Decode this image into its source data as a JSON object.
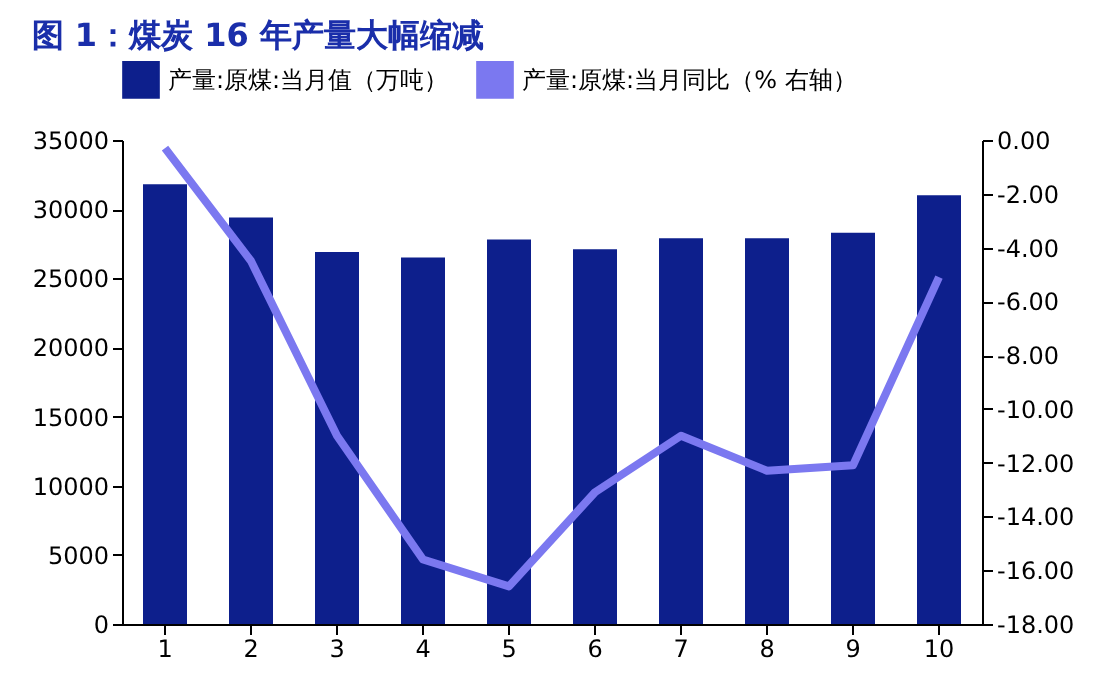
{
  "chart_data": {
    "type": "bar",
    "title": "图 1：煤炭 16 年产量大幅缩减",
    "categories": [
      "1",
      "2",
      "3",
      "4",
      "5",
      "6",
      "7",
      "8",
      "9",
      "10"
    ],
    "series": [
      {
        "name": "产量:原煤:当月值（万吨）",
        "color": "#0d1f8c",
        "values": [
          31800,
          29400,
          26900,
          26500,
          27800,
          27100,
          27900,
          27900,
          28300,
          31000
        ]
      },
      {
        "name": "产量:原煤:当月同比（% 右轴）",
        "type": "line",
        "axis": "y2",
        "color": "#7b78f0",
        "values": [
          -0.3,
          -4.5,
          -11.0,
          -15.6,
          -16.6,
          -13.1,
          -11.0,
          -12.3,
          -12.1,
          -5.1
        ]
      }
    ],
    "ylim": [
      0,
      35000
    ],
    "yticks": [
      0,
      5000,
      10000,
      15000,
      20000,
      25000,
      30000,
      35000
    ],
    "y2lim": [
      -18,
      0
    ],
    "y2ticks": [
      {
        "value": -18,
        "label": "-18.00"
      },
      {
        "value": -16,
        "label": "-16.00"
      },
      {
        "value": -14,
        "label": "-14.00"
      },
      {
        "value": -12,
        "label": "-12.00"
      },
      {
        "value": -10,
        "label": "-10.00"
      },
      {
        "value": -8,
        "label": "-8.00"
      },
      {
        "value": -6,
        "label": "-6.00"
      },
      {
        "value": -4,
        "label": "-4.00"
      },
      {
        "value": -2,
        "label": "-2.00"
      },
      {
        "value": 0,
        "label": "0.00"
      }
    ],
    "legend": "top",
    "grid": false,
    "line_style": "solid",
    "marker": "none"
  }
}
